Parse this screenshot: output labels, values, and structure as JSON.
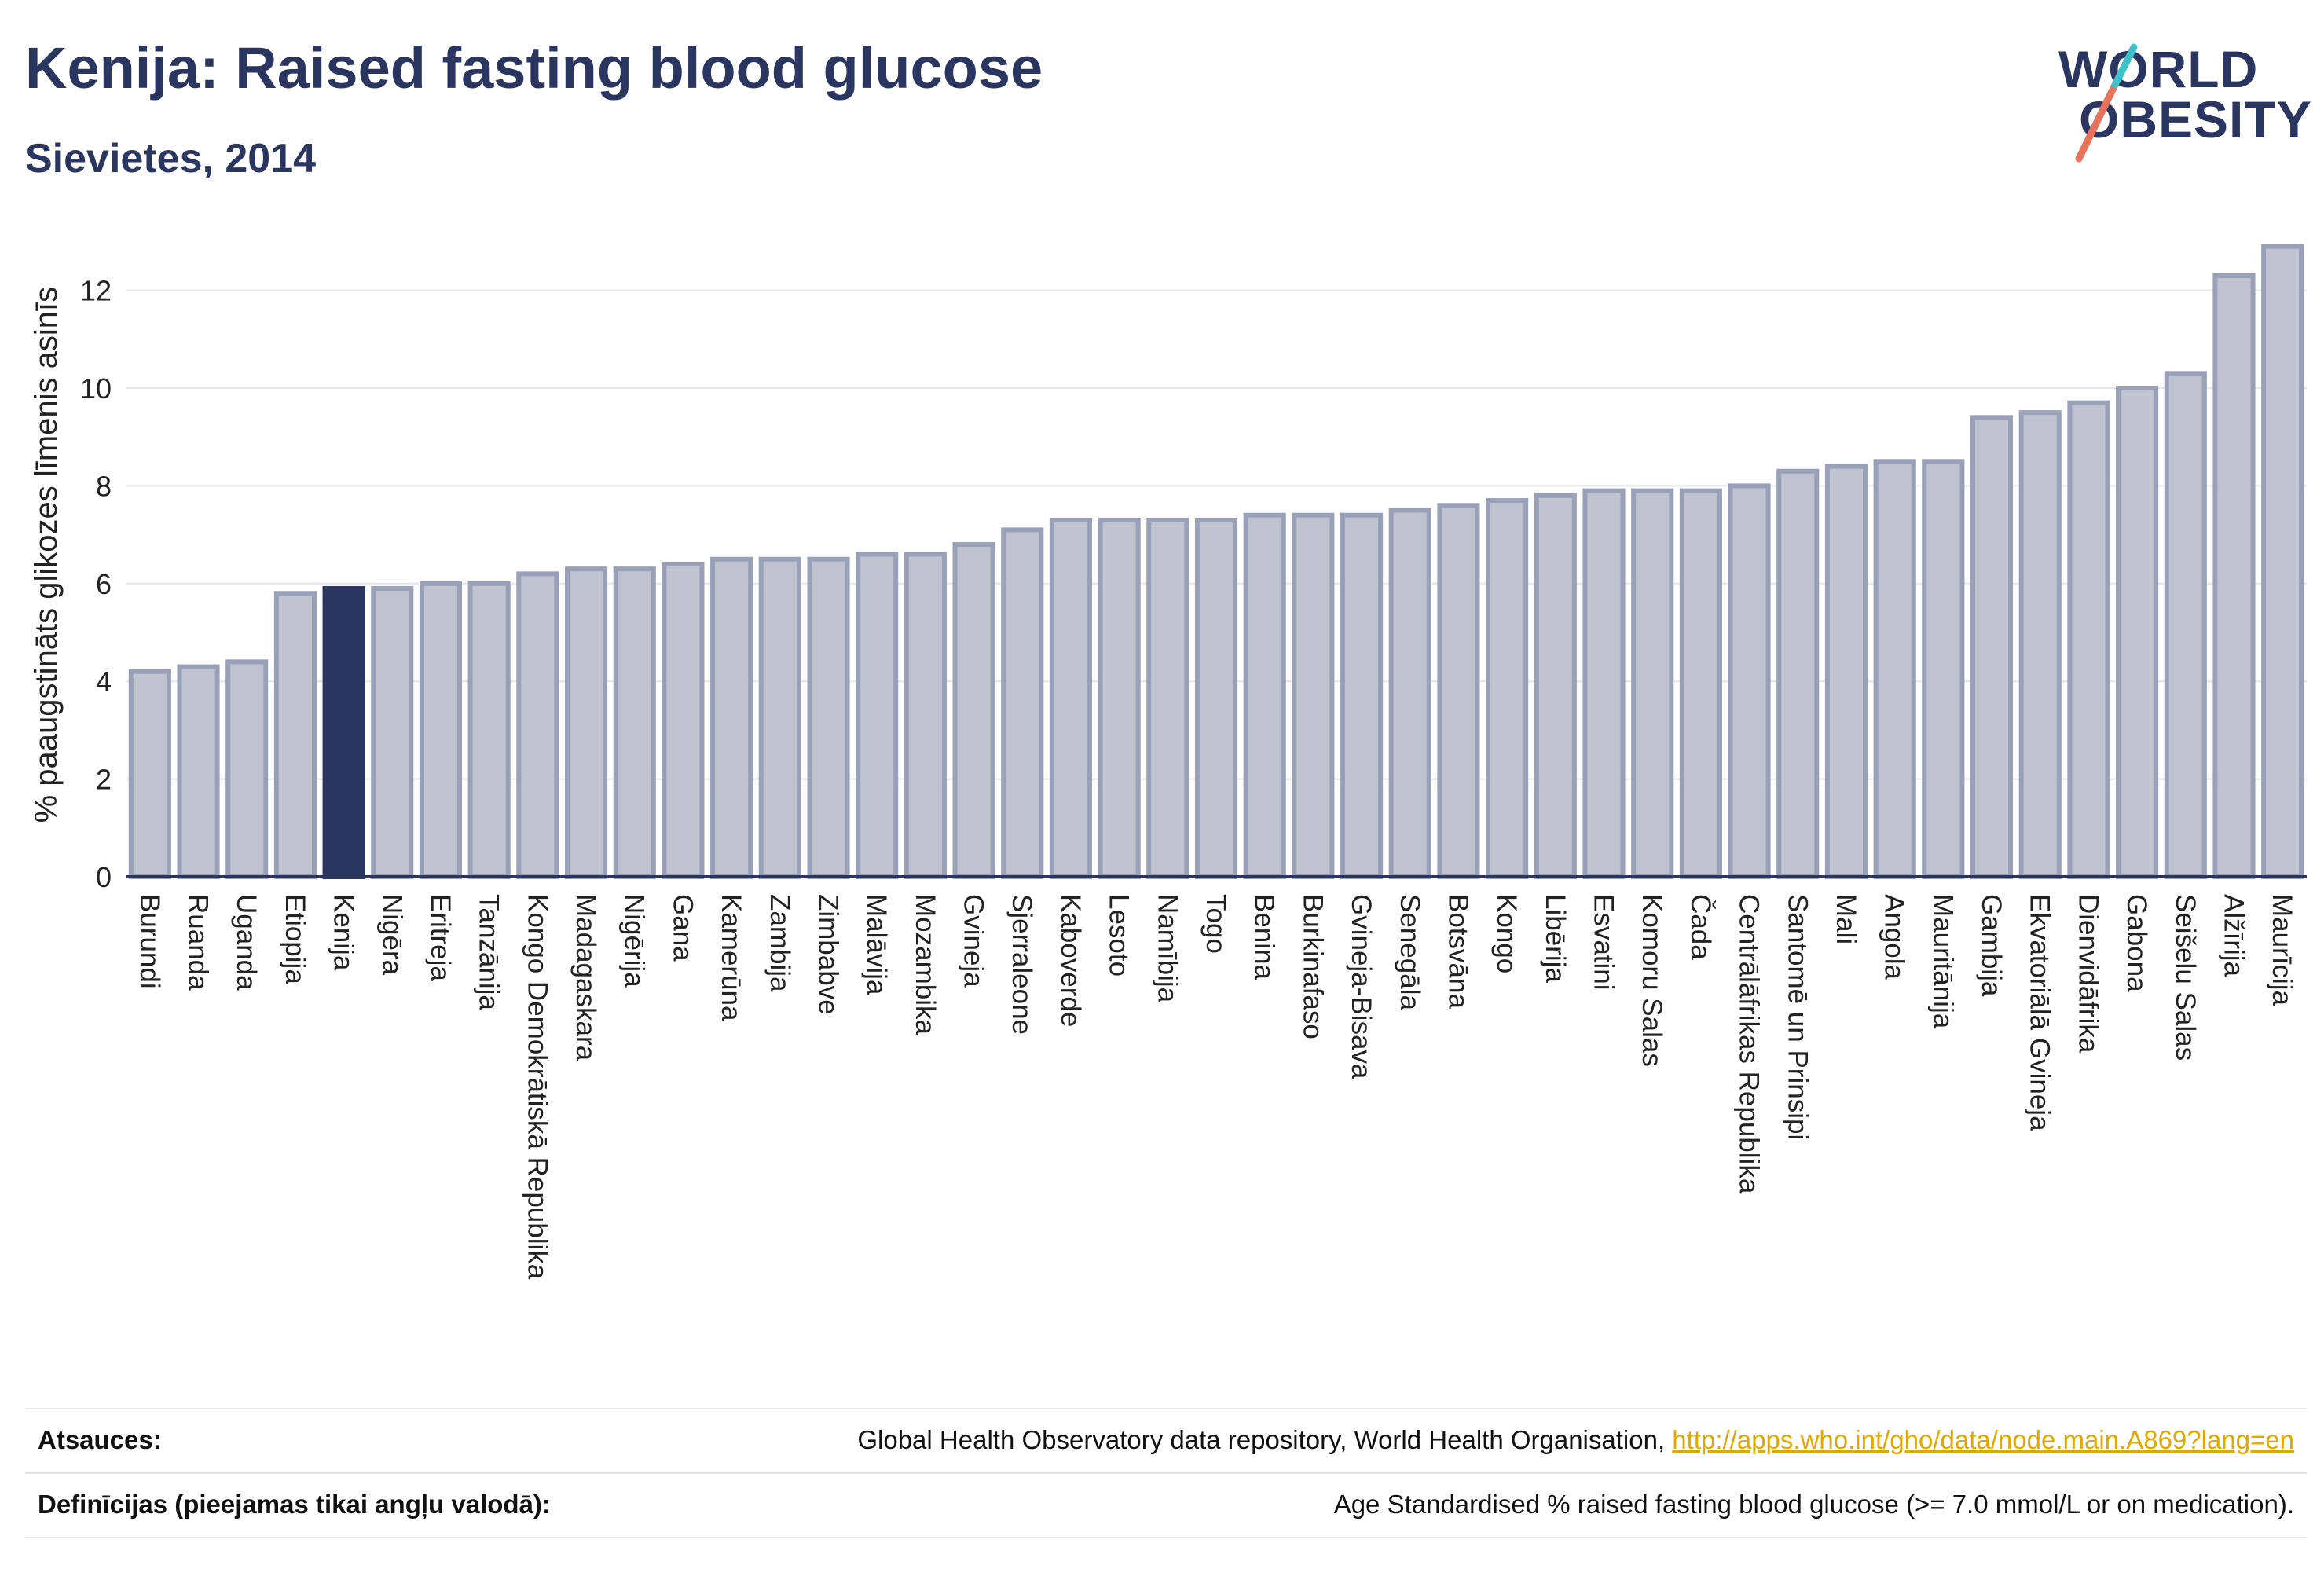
{
  "header": {
    "title": "Kenija: Raised fasting blood glucose",
    "subtitle": "Sievietes, 2014"
  },
  "logo": {
    "line1": "WORLD",
    "line2": "OBESITY",
    "accent_colors": [
      "#e8735a",
      "#3fc1c9"
    ]
  },
  "colors": {
    "highlight": "#2a3560",
    "bar_fill": "#bfc3d0",
    "bar_stroke": "#9aa0b8",
    "grid": "#e6e6ea",
    "link": "#e0a800"
  },
  "chart_data": {
    "type": "bar",
    "ylabel": "% paaugstināts glikozes līmenis asinīs",
    "ylim": [
      0,
      13.5
    ],
    "yticks": [
      0,
      2,
      4,
      6,
      8,
      10,
      12
    ],
    "highlight": "Kenija",
    "grid": true,
    "categories": [
      "Burundi",
      "Ruanda",
      "Uganda",
      "Etiopija",
      "Kenija",
      "Nigēra",
      "Eritreja",
      "Tanzānija",
      "Kongo Demokrātiskā Republika",
      "Madagaskara",
      "Nigērija",
      "Gana",
      "Kamerūna",
      "Zambija",
      "Zimbabve",
      "Malāvija",
      "Mozambika",
      "Gvineja",
      "Sjerraleone",
      "Kaboverde",
      "Lesoto",
      "Namībija",
      "Togo",
      "Benina",
      "Burkinafaso",
      "Gvineja-Bisava",
      "Senegāla",
      "Botsvāna",
      "Kongo",
      "Libērija",
      "Esvatini",
      "Komoru Salas",
      "Čada",
      "Centrālāfrikas Republika",
      "Santomē un Prinsipi",
      "Mali",
      "Angola",
      "Mauritānija",
      "Gambija",
      "Ekvatoriālā Gvineja",
      "Dienvidāfrika",
      "Gabona",
      "Seišelu Salas",
      "Alžīrija",
      "Maurīcija"
    ],
    "values": [
      4.2,
      4.3,
      4.4,
      5.8,
      5.9,
      5.9,
      6.0,
      6.0,
      6.2,
      6.3,
      6.3,
      6.4,
      6.5,
      6.5,
      6.5,
      6.6,
      6.6,
      6.8,
      7.1,
      7.3,
      7.3,
      7.3,
      7.3,
      7.4,
      7.4,
      7.4,
      7.5,
      7.6,
      7.7,
      7.8,
      7.9,
      7.9,
      7.9,
      8.0,
      8.3,
      8.4,
      8.5,
      8.5,
      9.4,
      9.5,
      9.7,
      10.0,
      10.3,
      12.3,
      12.9
    ]
  },
  "footer": {
    "sources_label": "Atsauces:",
    "sources_text": "Global Health Observatory data repository, World Health Organisation,",
    "sources_link": "http://apps.who.int/gho/data/node.main.A869?lang=en",
    "definitions_label": "Definīcijas (pieejamas tikai angļu valodā):",
    "definitions_text": "Age Standardised % raised fasting blood glucose (>= 7.0 mmol/L or on medication)."
  }
}
